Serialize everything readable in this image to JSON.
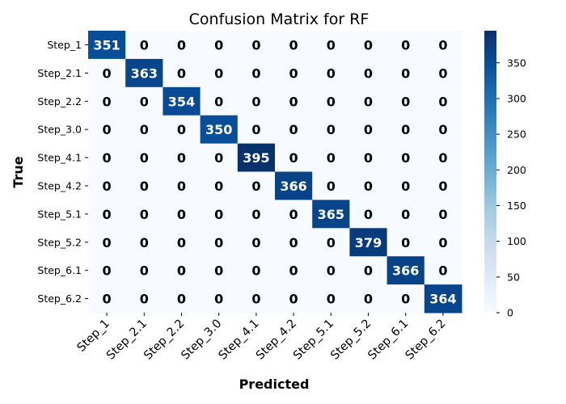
{
  "chart_data": {
    "type": "heatmap",
    "title": "Confusion Matrix for RF",
    "xlabel": "Predicted",
    "ylabel": "True",
    "x_categories": [
      "Step_1",
      "Step_2.1",
      "Step_2.2",
      "Step_3.0",
      "Step_4.1",
      "Step_4.2",
      "Step_5.1",
      "Step_5.2",
      "Step_6.1",
      "Step_6.2"
    ],
    "y_categories": [
      "Step_1",
      "Step_2.1",
      "Step_2.2",
      "Step_3.0",
      "Step_4.1",
      "Step_4.2",
      "Step_5.1",
      "Step_5.2",
      "Step_6.1",
      "Step_6.2"
    ],
    "matrix": [
      [
        351,
        0,
        0,
        0,
        0,
        0,
        0,
        0,
        0,
        0
      ],
      [
        0,
        363,
        0,
        0,
        0,
        0,
        0,
        0,
        0,
        0
      ],
      [
        0,
        0,
        354,
        0,
        0,
        0,
        0,
        0,
        0,
        0
      ],
      [
        0,
        0,
        0,
        350,
        0,
        0,
        0,
        0,
        0,
        0
      ],
      [
        0,
        0,
        0,
        0,
        395,
        0,
        0,
        0,
        0,
        0
      ],
      [
        0,
        0,
        0,
        0,
        0,
        366,
        0,
        0,
        0,
        0
      ],
      [
        0,
        0,
        0,
        0,
        0,
        0,
        365,
        0,
        0,
        0
      ],
      [
        0,
        0,
        0,
        0,
        0,
        0,
        0,
        379,
        0,
        0
      ],
      [
        0,
        0,
        0,
        0,
        0,
        0,
        0,
        0,
        366,
        0
      ],
      [
        0,
        0,
        0,
        0,
        0,
        0,
        0,
        0,
        0,
        364
      ]
    ],
    "colormap": "Blues",
    "color_range": [
      0,
      395
    ],
    "colorbar_ticks": [
      0,
      50,
      100,
      150,
      200,
      250,
      300,
      350
    ],
    "colors": {
      "low": "#f7fbff",
      "high": "#08306b",
      "text_on_dark": "#ffffff",
      "text_on_light": "#000000"
    }
  }
}
